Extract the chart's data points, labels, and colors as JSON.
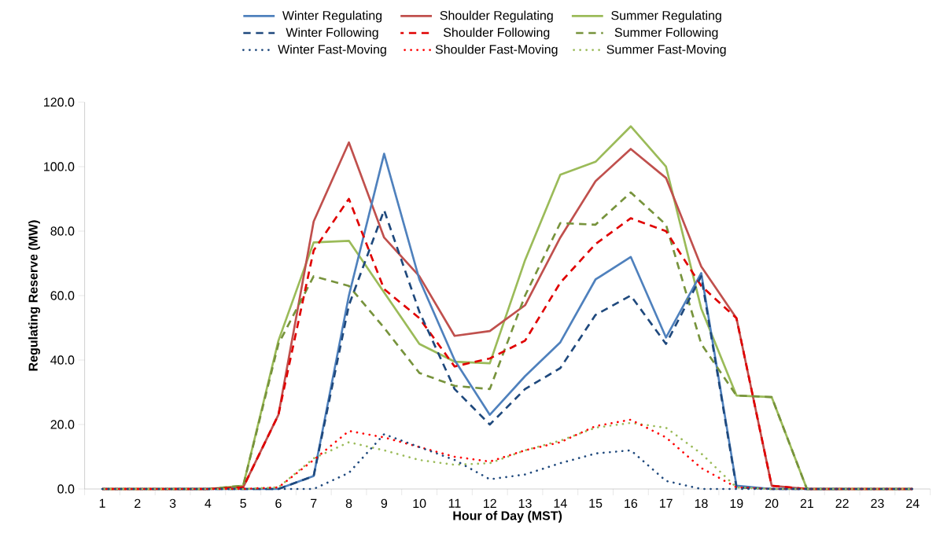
{
  "chart_data": {
    "type": "line",
    "xlabel": "Hour of Day (MST)",
    "ylabel": "Regulating Reserve (MW)",
    "categories": [
      "1",
      "2",
      "3",
      "4",
      "5",
      "6",
      "7",
      "8",
      "9",
      "10",
      "11",
      "12",
      "13",
      "14",
      "15",
      "16",
      "17",
      "18",
      "19",
      "20",
      "21",
      "22",
      "23",
      "24"
    ],
    "ylim": [
      0,
      120
    ],
    "yticks": [
      {
        "value": 0,
        "label": "0.0"
      },
      {
        "value": 20,
        "label": "20.0"
      },
      {
        "value": 40,
        "label": "40.0"
      },
      {
        "value": 60,
        "label": "60.0"
      },
      {
        "value": 80,
        "label": "80.0"
      },
      {
        "value": 100,
        "label": "100.0"
      },
      {
        "value": 120,
        "label": "120.0"
      }
    ],
    "legend": "top",
    "series": [
      {
        "name": "Winter Regulating",
        "color": "#4f81bd",
        "line_style": "solid",
        "values": [
          null,
          null,
          0,
          0,
          0,
          0,
          4,
          60,
          104,
          65,
          40,
          23,
          35,
          45.5,
          65,
          72,
          47,
          67,
          1,
          0,
          0,
          0,
          null,
          null
        ]
      },
      {
        "name": "Shoulder Regulating",
        "color": "#c0504d",
        "line_style": "solid",
        "values": [
          0,
          0,
          0,
          0,
          0.5,
          23,
          83,
          107.5,
          78,
          66,
          47.5,
          49,
          57,
          78,
          95.5,
          105.5,
          96.5,
          69,
          53,
          1,
          0,
          0,
          0,
          0
        ]
      },
      {
        "name": "Summer Regulating",
        "color": "#9bbb59",
        "line_style": "solid",
        "values": [
          0,
          0,
          0,
          0,
          1,
          46,
          76.5,
          77,
          61,
          45,
          39.5,
          39,
          71,
          97.5,
          101.5,
          112.5,
          100,
          56,
          29,
          28.5,
          0,
          0,
          0,
          0
        ]
      },
      {
        "name": "Winter Following",
        "color": "#1f497d",
        "line_style": "dashed",
        "values": [
          0,
          0,
          0,
          0,
          0,
          0,
          4,
          57,
          86.5,
          55,
          31,
          20,
          31,
          37.5,
          54,
          60,
          45,
          66,
          0.5,
          0,
          0,
          0,
          0,
          0
        ]
      },
      {
        "name": "Shoulder Following",
        "color": "#e00000",
        "line_style": "dashed",
        "values": [
          0,
          0,
          0,
          0,
          0.5,
          23,
          74,
          90,
          62,
          53,
          38,
          40.5,
          46,
          64,
          76,
          84,
          80,
          63,
          53,
          1,
          0,
          0,
          0,
          0
        ]
      },
      {
        "name": "Summer Following",
        "color": "#77933c",
        "line_style": "dashed",
        "values": [
          0,
          0,
          0,
          0,
          1,
          45,
          66,
          63,
          50,
          36,
          32,
          31,
          60,
          82.5,
          82,
          92,
          82,
          45,
          29,
          28.5,
          0,
          0,
          0,
          0
        ]
      },
      {
        "name": "Winter Fast-Moving",
        "color": "#1f497d",
        "line_style": "dotted",
        "values": [
          0,
          0,
          0,
          0,
          0,
          0,
          0,
          5,
          17,
          13,
          9,
          3,
          4.5,
          8,
          11,
          12,
          2.5,
          0,
          0,
          0,
          0,
          0,
          0,
          0
        ]
      },
      {
        "name": "Shoulder Fast-Moving",
        "color": "#ff0000",
        "line_style": "dotted",
        "values": [
          0,
          0,
          0,
          0,
          0,
          0.5,
          9,
          18,
          16,
          13,
          10,
          8.5,
          12,
          14.5,
          19.5,
          21.5,
          16,
          6.5,
          0.5,
          0,
          0,
          0,
          0,
          0
        ]
      },
      {
        "name": "Summer Fast-Moving",
        "color": "#9bbb59",
        "line_style": "dotted",
        "values": [
          0,
          0,
          0,
          0,
          0,
          0.5,
          9.5,
          14.5,
          12,
          9,
          7.5,
          8,
          12,
          15,
          19,
          20.5,
          19,
          11,
          0.5,
          0,
          0,
          0,
          0,
          0
        ]
      }
    ]
  }
}
